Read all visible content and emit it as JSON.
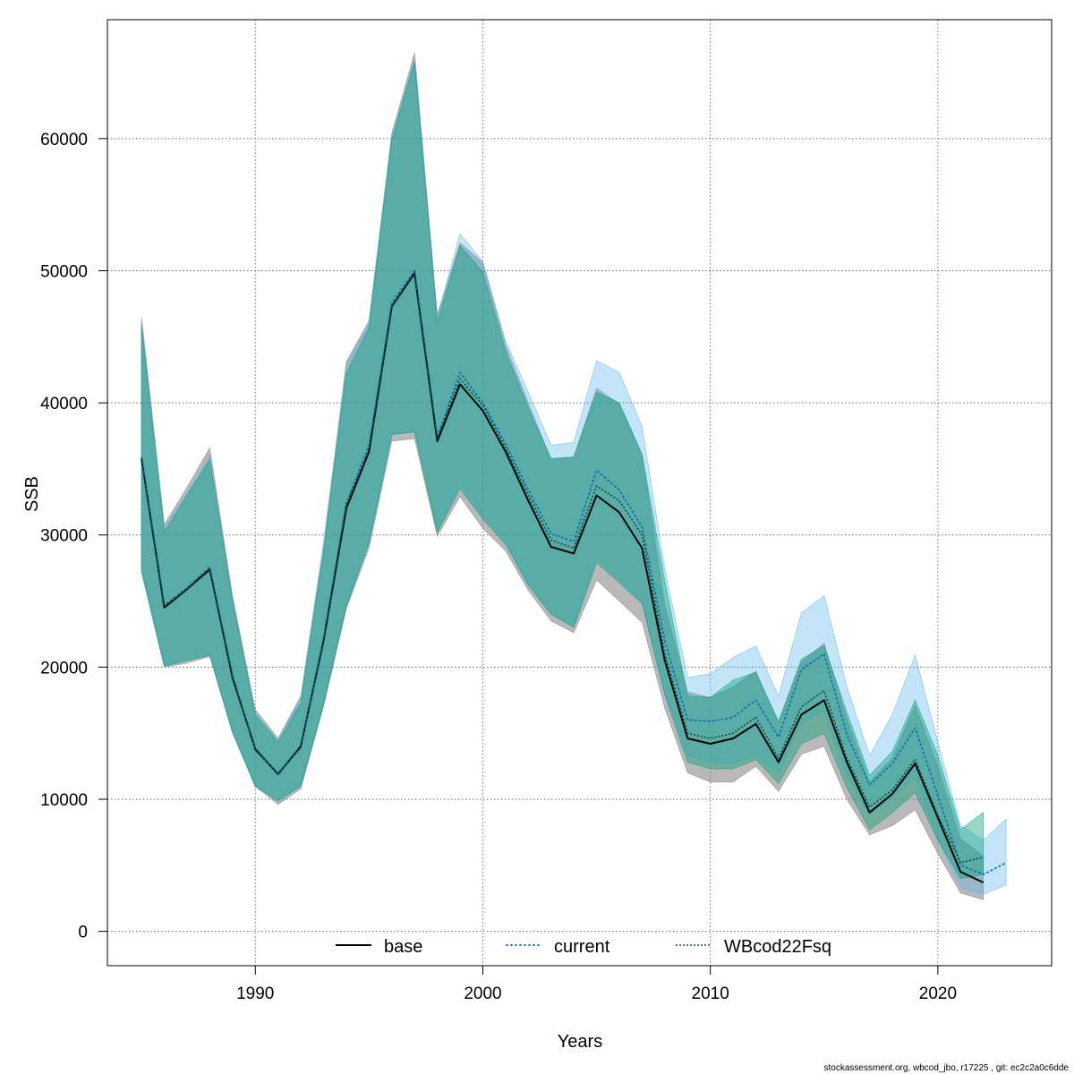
{
  "chart_data": {
    "type": "area",
    "xlabel": "Years",
    "ylabel": "SSB",
    "xlim": [
      1983.5,
      2025.0
    ],
    "ylim": [
      -2600,
      69000
    ],
    "x_ticks": [
      1990,
      2000,
      2010,
      2020
    ],
    "y_ticks": [
      0,
      10000,
      20000,
      30000,
      40000,
      50000,
      60000
    ],
    "grid": true,
    "legend_position": "bottom",
    "footer": "stockassessment.org, wbcod_jbo, r17225 , git: ec2c2a0c6dde",
    "series": [
      {
        "name": "base",
        "line_style": "solid",
        "line_color": "#000000",
        "band_color": "#808080",
        "x": [
          1985,
          1986,
          1987,
          1988,
          1989,
          1990,
          1991,
          1992,
          1993,
          1994,
          1995,
          1996,
          1997,
          1998,
          1999,
          2000,
          2001,
          2002,
          2003,
          2004,
          2005,
          2006,
          2007,
          2008,
          2009,
          2010,
          2011,
          2012,
          2013,
          2014,
          2015,
          2016,
          2017,
          2018,
          2019,
          2020,
          2021,
          2022
        ],
        "values": [
          35800,
          24500,
          25900,
          27400,
          19200,
          13800,
          11900,
          14000,
          22000,
          32000,
          36300,
          47300,
          49800,
          37100,
          41400,
          39400,
          36300,
          32600,
          29100,
          28600,
          33000,
          31700,
          29000,
          20500,
          14600,
          14200,
          14600,
          15700,
          12800,
          16400,
          17500,
          12800,
          9000,
          10400,
          12700,
          8600,
          4500,
          3700
        ],
        "lower": [
          27200,
          20000,
          20300,
          20800,
          15000,
          11000,
          9600,
          10800,
          17000,
          24400,
          29000,
          37100,
          37300,
          29900,
          32900,
          30500,
          28800,
          25800,
          23500,
          22600,
          26600,
          25000,
          23400,
          16900,
          12000,
          11300,
          11300,
          12500,
          10600,
          13400,
          14000,
          10000,
          7300,
          8000,
          9200,
          5900,
          2900,
          2400
        ],
        "upper": [
          46500,
          30800,
          33600,
          36600,
          25400,
          16800,
          14600,
          17800,
          29000,
          43100,
          46200,
          60400,
          66500,
          46700,
          52100,
          50600,
          44400,
          40000,
          35700,
          35900,
          41100,
          39900,
          36100,
          24700,
          18100,
          17700,
          18500,
          19700,
          15700,
          20400,
          21800,
          16100,
          11300,
          13100,
          17100,
          12500,
          7000,
          5700
        ]
      },
      {
        "name": "current",
        "line_style": "dashed",
        "line_color": "#0072B2",
        "band_color": "#56B4E9",
        "x": [
          1985,
          1986,
          1987,
          1988,
          1989,
          1990,
          1991,
          1992,
          1993,
          1994,
          1995,
          1996,
          1997,
          1998,
          1999,
          2000,
          2001,
          2002,
          2003,
          2004,
          2005,
          2006,
          2007,
          2008,
          2009,
          2010,
          2011,
          2012,
          2013,
          2014,
          2015,
          2016,
          2017,
          2018,
          2019,
          2020,
          2021,
          2022,
          2023
        ],
        "values": [
          35900,
          24700,
          26000,
          27600,
          19400,
          13700,
          12000,
          13900,
          22200,
          32400,
          36800,
          47600,
          50000,
          37400,
          42300,
          40000,
          36900,
          33400,
          30100,
          29500,
          34900,
          33400,
          30600,
          22000,
          16000,
          15900,
          16200,
          17500,
          14700,
          19800,
          21000,
          14900,
          11100,
          12700,
          15400,
          10300,
          5000,
          4300,
          5200
        ],
        "lower": [
          27200,
          20000,
          20500,
          20900,
          15100,
          10900,
          9800,
          11000,
          17200,
          24600,
          29600,
          37600,
          37800,
          30300,
          33800,
          31400,
          29500,
          26200,
          24100,
          23100,
          28200,
          26600,
          24900,
          18100,
          13300,
          12800,
          12700,
          13300,
          11900,
          15800,
          16600,
          11700,
          8800,
          10100,
          11700,
          6900,
          3300,
          2800,
          3500
        ],
        "upper": [
          46000,
          30500,
          33200,
          36000,
          25100,
          16500,
          14500,
          17700,
          29500,
          42800,
          46200,
          60300,
          66000,
          46500,
          52800,
          50700,
          44700,
          40800,
          36800,
          37000,
          43200,
          42300,
          38200,
          27400,
          19200,
          19500,
          20700,
          21600,
          17800,
          24100,
          25400,
          18500,
          13300,
          16400,
          20900,
          14300,
          8000,
          6900,
          8500
        ]
      },
      {
        "name": "WBcod22Fsq",
        "line_style": "dotted",
        "line_color": "#004D40",
        "band_color": "#009E73",
        "x": [
          1985,
          1986,
          1987,
          1988,
          1989,
          1990,
          1991,
          1992,
          1993,
          1994,
          1995,
          1996,
          1997,
          1998,
          1999,
          2000,
          2001,
          2002,
          2003,
          2004,
          2005,
          2006,
          2007,
          2008,
          2009,
          2010,
          2011,
          2012,
          2013,
          2014,
          2015,
          2016,
          2017,
          2018,
          2019,
          2020,
          2021,
          2022
        ],
        "values": [
          35800,
          24600,
          25900,
          27300,
          19300,
          13700,
          11900,
          13900,
          22100,
          32300,
          36500,
          47300,
          49900,
          37300,
          41800,
          39800,
          36600,
          33000,
          29600,
          29000,
          33700,
          32600,
          30000,
          21000,
          15000,
          14600,
          15000,
          16200,
          13100,
          17000,
          18200,
          13100,
          9400,
          10700,
          13000,
          8800,
          5200,
          5600
        ],
        "lower": [
          27400,
          20100,
          20500,
          20900,
          15100,
          11000,
          9900,
          11000,
          17200,
          24600,
          29400,
          37600,
          37800,
          30200,
          33500,
          31200,
          29300,
          26200,
          24000,
          23000,
          27900,
          26400,
          24800,
          17900,
          12800,
          12300,
          12300,
          13000,
          11200,
          14200,
          15000,
          10900,
          7700,
          9000,
          10500,
          6900,
          4000,
          4300
        ],
        "upper": [
          45800,
          30200,
          33000,
          35700,
          25000,
          16400,
          14300,
          17300,
          28700,
          42200,
          45700,
          59900,
          65800,
          46100,
          51900,
          49900,
          43900,
          39600,
          35800,
          35900,
          40800,
          40000,
          36100,
          26500,
          17800,
          17700,
          19000,
          19600,
          15900,
          20600,
          21600,
          16600,
          11800,
          13600,
          17500,
          13300,
          7700,
          9000
        ]
      }
    ]
  }
}
